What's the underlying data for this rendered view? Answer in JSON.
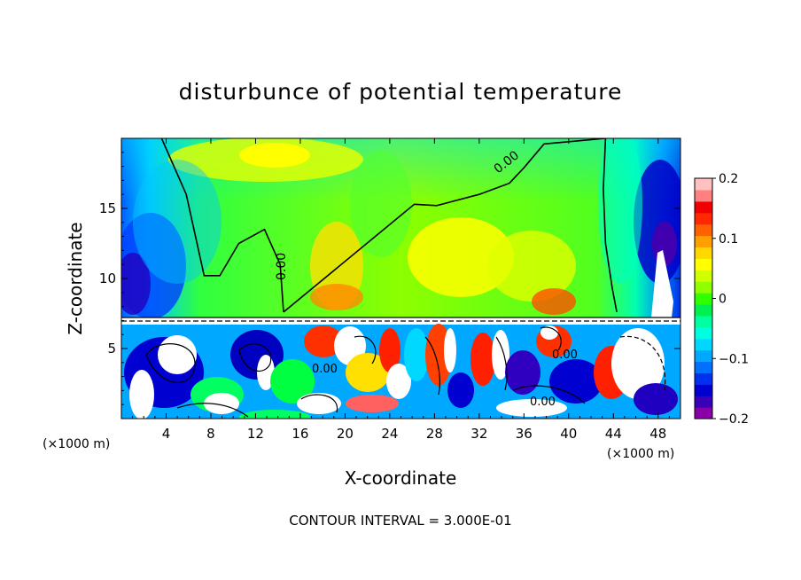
{
  "chart_data": {
    "type": "heatmap",
    "title": "disturbunce of potential temperature",
    "xlabel": "X-coordinate",
    "ylabel": "Z-coordinate",
    "x_unit_left": "(×1000 m)",
    "x_unit_right": "(×1000 m)",
    "xlim": [
      0,
      50
    ],
    "ylim": [
      0,
      20
    ],
    "x_ticks": [
      4,
      8,
      12,
      16,
      20,
      24,
      28,
      32,
      36,
      40,
      44,
      48
    ],
    "y_ticks": [
      5,
      10,
      15
    ],
    "contour_interval_text": "CONTOUR INTERVAL = 3.000E-01",
    "contour_label": "0.00",
    "colorbar": {
      "vmin": -0.2,
      "vmax": 0.2,
      "ticks": [
        0.2,
        0.1,
        0,
        -0.1,
        -0.2
      ],
      "tick_labels": [
        "0.2",
        "0.1",
        "0",
        "−0.1",
        "−0.2"
      ],
      "colors": [
        "#8a00a8",
        "#3a00b8",
        "#0000d0",
        "#0030f0",
        "#0070ff",
        "#00a8ff",
        "#00d8ff",
        "#00ffe0",
        "#00ffa0",
        "#00f050",
        "#30ff00",
        "#90ff00",
        "#d0ff00",
        "#ffff00",
        "#ffd800",
        "#ffa000",
        "#ff6000",
        "#ff2800",
        "#f00000",
        "#ff8080",
        "#ffc0c0"
      ]
    },
    "regions": {
      "upper": "values mostly 0 to 0.1 (green/yellow), negative (blue/purple) near x=0 and x=50",
      "lower": "turbulent mixture of -0.2 to 0.2 below z≈7"
    },
    "contour_zero_upper": [
      [
        1.5,
        20
      ],
      [
        4,
        17
      ],
      [
        6.5,
        12.5
      ],
      [
        7.8,
        9.8
      ],
      [
        8.8,
        10.2
      ],
      [
        10,
        12.5
      ],
      [
        12,
        13.8
      ],
      [
        13.5,
        13.5
      ],
      [
        14.2,
        11
      ],
      [
        14.5,
        7.6
      ],
      [
        26.2,
        15.3
      ],
      [
        28.2,
        15.2
      ],
      [
        32,
        16
      ],
      [
        34.7,
        16.8
      ],
      [
        36,
        17.9
      ],
      [
        37.8,
        19.6
      ],
      [
        43.3,
        20
      ],
      [
        43.1,
        16.4
      ],
      [
        43.3,
        12.5
      ],
      [
        43.9,
        9.3
      ],
      [
        44.3,
        7.6
      ]
    ],
    "contour_zero_left_top": [
      [
        3.6,
        20
      ],
      [
        5.8,
        16
      ],
      [
        7.4,
        10.2
      ],
      [
        8.8,
        10.2
      ],
      [
        10.5,
        12.5
      ],
      [
        12.8,
        13.5
      ],
      [
        14.2,
        11
      ],
      [
        14.5,
        7.6
      ]
    ]
  }
}
